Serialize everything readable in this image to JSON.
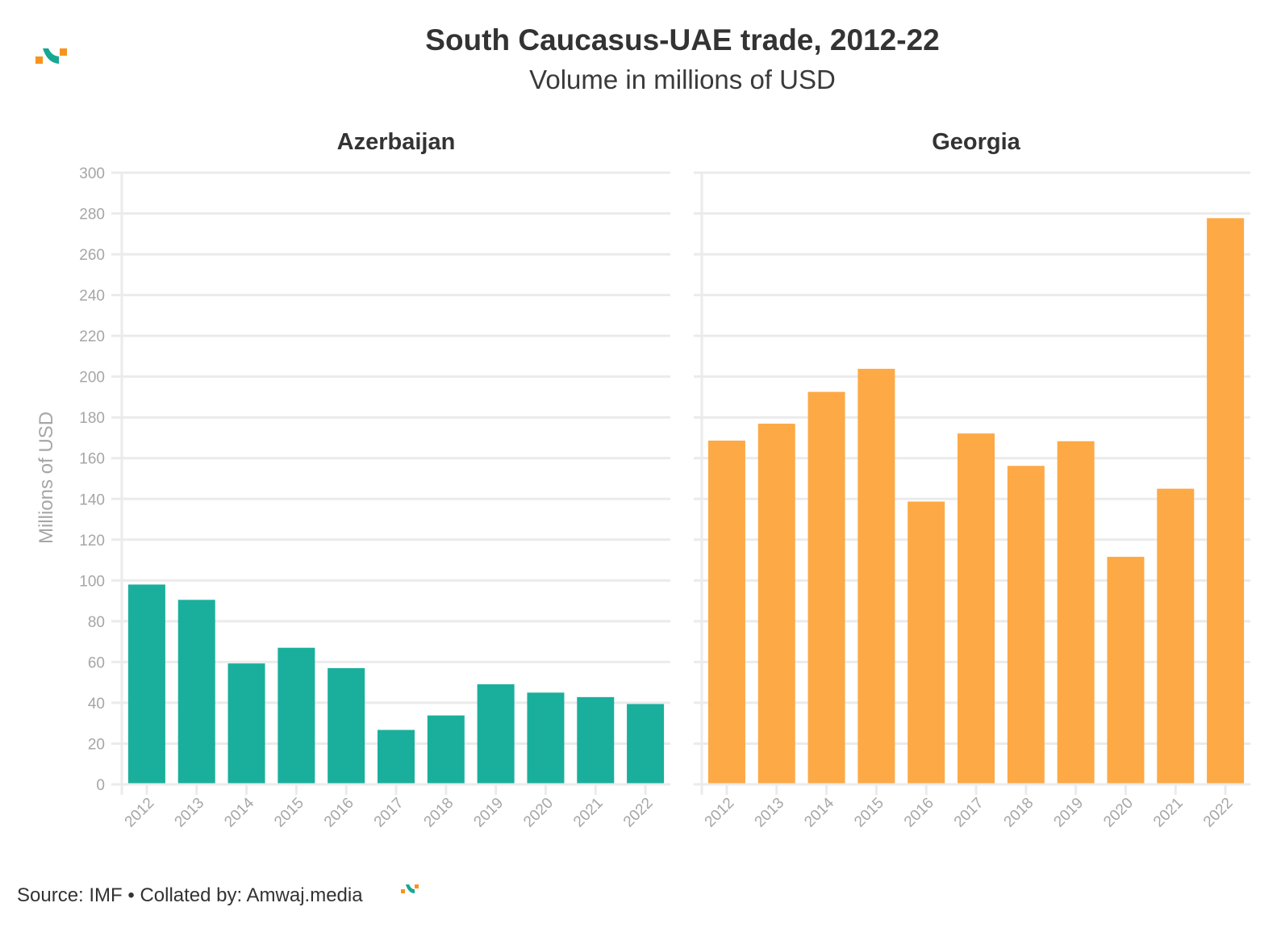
{
  "header": {
    "title": "South Caucasus-UAE trade, 2012-22",
    "subtitle": "Volume in millions of USD"
  },
  "footer": {
    "source": "Source: IMF • Collated by: Amwaj.media"
  },
  "logo": {
    "name": "amwaj-logo-icon",
    "colors": [
      "#f7941d",
      "#17a893"
    ]
  },
  "chart_data": [
    {
      "type": "bar",
      "title": "Azerbaijan",
      "xlabel": "",
      "ylabel": "Millions of USD",
      "ylim": [
        0,
        300
      ],
      "yticks": [
        0,
        20,
        40,
        60,
        80,
        100,
        120,
        140,
        160,
        180,
        200,
        220,
        240,
        260,
        280,
        300
      ],
      "grid": true,
      "color": "#1aaf9c",
      "categories": [
        "2012",
        "2013",
        "2014",
        "2015",
        "2016",
        "2017",
        "2018",
        "2019",
        "2020",
        "2021",
        "2022"
      ],
      "values": [
        98,
        90.5,
        59.3,
        67,
        57,
        26.7,
        33.8,
        49.1,
        45,
        42.8,
        39.4
      ]
    },
    {
      "type": "bar",
      "title": "Georgia",
      "xlabel": "",
      "ylabel": "",
      "ylim": [
        0,
        300
      ],
      "yticks": [
        0,
        20,
        40,
        60,
        80,
        100,
        120,
        140,
        160,
        180,
        200,
        220,
        240,
        260,
        280,
        300
      ],
      "grid": true,
      "color": "#fda945",
      "categories": [
        "2012",
        "2013",
        "2014",
        "2015",
        "2016",
        "2017",
        "2018",
        "2019",
        "2020",
        "2021",
        "2022"
      ],
      "values": [
        168.6,
        176.9,
        192.5,
        203.8,
        138.7,
        172.1,
        156.2,
        168.3,
        111.6,
        145,
        277.7
      ]
    }
  ]
}
